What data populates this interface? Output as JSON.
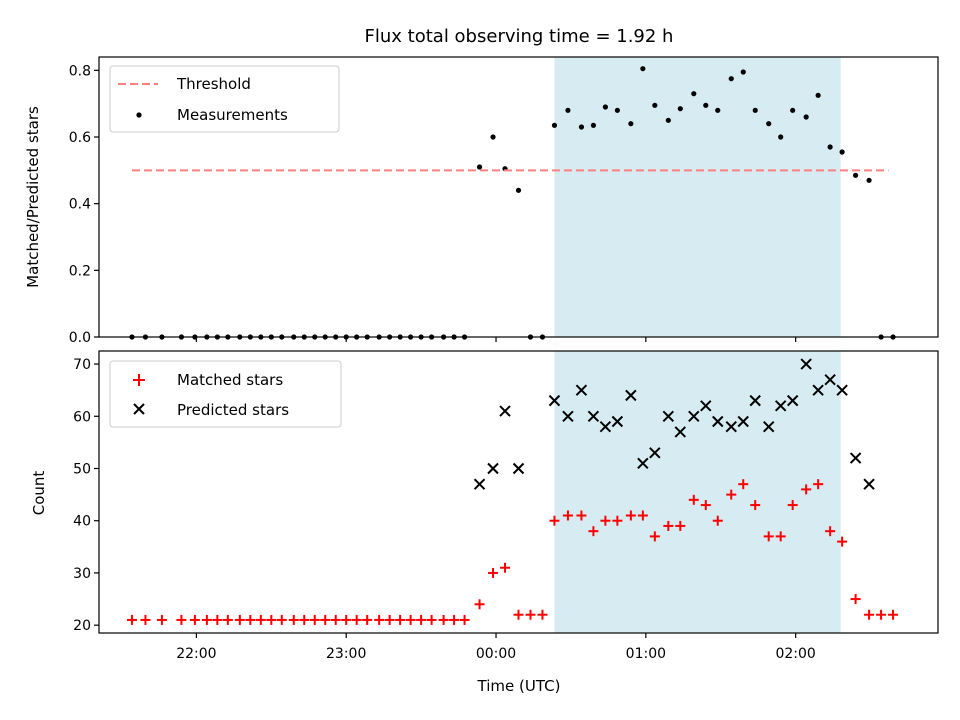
{
  "chart_data": {
    "title": "Flux total observing time = 1.92 h",
    "xlabel": "Time (UTC)",
    "x_tick_labels": [
      "22:00",
      "23:00",
      "00:00",
      "01:00",
      "02:00"
    ],
    "x_ticks_hours": [
      22,
      23,
      24,
      25,
      26
    ],
    "x_range_hours": [
      21.35,
      26.95
    ],
    "shaded_interval_hours": [
      24.39,
      26.3
    ],
    "shaded_color": "#add8e6",
    "top": {
      "type": "scatter",
      "ylabel": "Matched/Predicted stars",
      "ylim": [
        0,
        0.84
      ],
      "y_ticks": [
        0.0,
        0.2,
        0.4,
        0.6,
        0.8
      ],
      "legend_position": "upper-left",
      "threshold": {
        "name": "Threshold",
        "value": 0.5,
        "x_range_hours": [
          21.57,
          26.62
        ],
        "color": "#ff7f7f"
      },
      "measurements": {
        "name": "Measurements",
        "color": "#000000",
        "points": [
          [
            21.57,
            0.0
          ],
          [
            21.66,
            0.0
          ],
          [
            21.77,
            0.0
          ],
          [
            21.9,
            0.0
          ],
          [
            21.99,
            0.0
          ],
          [
            22.07,
            0.0
          ],
          [
            22.14,
            0.0
          ],
          [
            22.21,
            0.0
          ],
          [
            22.29,
            0.0
          ],
          [
            22.36,
            0.0
          ],
          [
            22.43,
            0.0
          ],
          [
            22.5,
            0.0
          ],
          [
            22.57,
            0.0
          ],
          [
            22.65,
            0.0
          ],
          [
            22.72,
            0.0
          ],
          [
            22.79,
            0.0
          ],
          [
            22.86,
            0.0
          ],
          [
            22.93,
            0.0
          ],
          [
            23.0,
            0.0
          ],
          [
            23.07,
            0.0
          ],
          [
            23.14,
            0.0
          ],
          [
            23.22,
            0.0
          ],
          [
            23.29,
            0.0
          ],
          [
            23.36,
            0.0
          ],
          [
            23.43,
            0.0
          ],
          [
            23.5,
            0.0
          ],
          [
            23.57,
            0.0
          ],
          [
            23.65,
            0.0
          ],
          [
            23.72,
            0.0
          ],
          [
            23.79,
            0.0
          ],
          [
            23.89,
            0.51
          ],
          [
            23.98,
            0.6
          ],
          [
            24.06,
            0.505
          ],
          [
            24.15,
            0.44
          ],
          [
            24.23,
            0.0
          ],
          [
            24.31,
            0.0
          ],
          [
            24.39,
            0.635
          ],
          [
            24.48,
            0.68
          ],
          [
            24.57,
            0.63
          ],
          [
            24.65,
            0.635
          ],
          [
            24.73,
            0.69
          ],
          [
            24.81,
            0.68
          ],
          [
            24.9,
            0.64
          ],
          [
            24.98,
            0.805
          ],
          [
            25.06,
            0.695
          ],
          [
            25.15,
            0.65
          ],
          [
            25.23,
            0.685
          ],
          [
            25.32,
            0.73
          ],
          [
            25.4,
            0.695
          ],
          [
            25.48,
            0.68
          ],
          [
            25.57,
            0.775
          ],
          [
            25.65,
            0.795
          ],
          [
            25.73,
            0.68
          ],
          [
            25.82,
            0.64
          ],
          [
            25.9,
            0.6
          ],
          [
            25.98,
            0.68
          ],
          [
            26.07,
            0.66
          ],
          [
            26.15,
            0.725
          ],
          [
            26.23,
            0.57
          ],
          [
            26.31,
            0.555
          ],
          [
            26.4,
            0.485
          ],
          [
            26.49,
            0.47
          ],
          [
            26.57,
            0.0
          ],
          [
            26.65,
            0.0
          ]
        ]
      }
    },
    "bottom": {
      "type": "scatter",
      "ylabel": "Count",
      "ylim": [
        18.5,
        72.5
      ],
      "y_ticks": [
        20,
        30,
        40,
        50,
        60,
        70
      ],
      "legend_position": "upper-left",
      "series": [
        {
          "name": "Matched stars",
          "marker": "plus",
          "color": "#ff0000",
          "points": [
            [
              21.57,
              21
            ],
            [
              21.66,
              21
            ],
            [
              21.77,
              21
            ],
            [
              21.9,
              21
            ],
            [
              21.99,
              21
            ],
            [
              22.07,
              21
            ],
            [
              22.14,
              21
            ],
            [
              22.21,
              21
            ],
            [
              22.29,
              21
            ],
            [
              22.36,
              21
            ],
            [
              22.43,
              21
            ],
            [
              22.5,
              21
            ],
            [
              22.57,
              21
            ],
            [
              22.65,
              21
            ],
            [
              22.72,
              21
            ],
            [
              22.79,
              21
            ],
            [
              22.86,
              21
            ],
            [
              22.93,
              21
            ],
            [
              23.0,
              21
            ],
            [
              23.07,
              21
            ],
            [
              23.14,
              21
            ],
            [
              23.22,
              21
            ],
            [
              23.29,
              21
            ],
            [
              23.36,
              21
            ],
            [
              23.43,
              21
            ],
            [
              23.5,
              21
            ],
            [
              23.57,
              21
            ],
            [
              23.65,
              21
            ],
            [
              23.72,
              21
            ],
            [
              23.79,
              21
            ],
            [
              23.89,
              24
            ],
            [
              23.98,
              30
            ],
            [
              24.06,
              31
            ],
            [
              24.15,
              22
            ],
            [
              24.23,
              22
            ],
            [
              24.31,
              22
            ],
            [
              24.39,
              40
            ],
            [
              24.48,
              41
            ],
            [
              24.57,
              41
            ],
            [
              24.65,
              38
            ],
            [
              24.73,
              40
            ],
            [
              24.81,
              40
            ],
            [
              24.9,
              41
            ],
            [
              24.98,
              41
            ],
            [
              25.06,
              37
            ],
            [
              25.15,
              39
            ],
            [
              25.23,
              39
            ],
            [
              25.32,
              44
            ],
            [
              25.4,
              43
            ],
            [
              25.48,
              40
            ],
            [
              25.57,
              45
            ],
            [
              25.65,
              47
            ],
            [
              25.73,
              43
            ],
            [
              25.82,
              37
            ],
            [
              25.9,
              37
            ],
            [
              25.98,
              43
            ],
            [
              26.07,
              46
            ],
            [
              26.15,
              47
            ],
            [
              26.23,
              38
            ],
            [
              26.31,
              36
            ],
            [
              26.4,
              25
            ],
            [
              26.49,
              22
            ],
            [
              26.57,
              22
            ],
            [
              26.65,
              22
            ]
          ]
        },
        {
          "name": "Predicted stars",
          "marker": "x",
          "color": "#000000",
          "points": [
            [
              23.89,
              47
            ],
            [
              23.98,
              50
            ],
            [
              24.06,
              61
            ],
            [
              24.15,
              50
            ],
            [
              24.39,
              63
            ],
            [
              24.48,
              60
            ],
            [
              24.57,
              65
            ],
            [
              24.65,
              60
            ],
            [
              24.73,
              58
            ],
            [
              24.81,
              59
            ],
            [
              24.9,
              64
            ],
            [
              24.98,
              51
            ],
            [
              25.06,
              53
            ],
            [
              25.15,
              60
            ],
            [
              25.23,
              57
            ],
            [
              25.32,
              60
            ],
            [
              25.4,
              62
            ],
            [
              25.48,
              59
            ],
            [
              25.57,
              58
            ],
            [
              25.65,
              59
            ],
            [
              25.73,
              63
            ],
            [
              25.82,
              58
            ],
            [
              25.9,
              62
            ],
            [
              25.98,
              63
            ],
            [
              26.07,
              70
            ],
            [
              26.15,
              65
            ],
            [
              26.23,
              67
            ],
            [
              26.31,
              65
            ],
            [
              26.4,
              52
            ],
            [
              26.49,
              47
            ]
          ]
        }
      ]
    }
  }
}
